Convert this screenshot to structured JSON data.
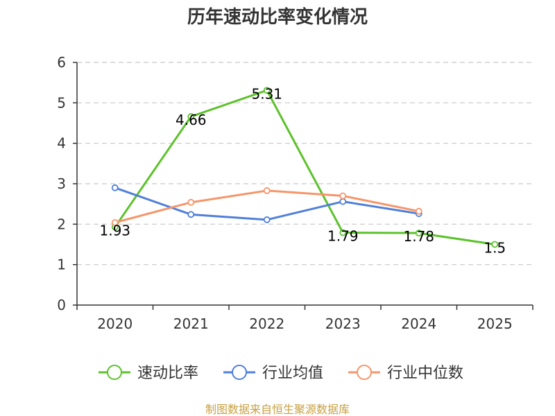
{
  "chart_data": {
    "type": "line",
    "title": "历年速动比率变化情况",
    "categories": [
      "2020",
      "2021",
      "2022",
      "2023",
      "2024",
      "2025"
    ],
    "ylim": [
      0,
      6
    ],
    "yticks": [
      0,
      1,
      2,
      3,
      4,
      5,
      6
    ],
    "grid": true,
    "legend_position": "bottom",
    "series": [
      {
        "name": "速动比率",
        "color": "#5cc22a",
        "values": [
          1.93,
          4.66,
          5.31,
          1.79,
          1.78,
          1.5
        ],
        "labels": [
          "1.93",
          "4.66",
          "5.31",
          "1.79",
          "1.78",
          "1.5"
        ]
      },
      {
        "name": "行业均值",
        "color": "#4f7fda",
        "values": [
          2.9,
          2.24,
          2.11,
          2.56,
          2.26,
          null
        ]
      },
      {
        "name": "行业中位数",
        "color": "#f6956a",
        "values": [
          2.04,
          2.54,
          2.83,
          2.7,
          2.32,
          null
        ]
      }
    ]
  },
  "source": {
    "text": "制图数据来自恒生聚源数据库",
    "color": "#c7a041"
  }
}
